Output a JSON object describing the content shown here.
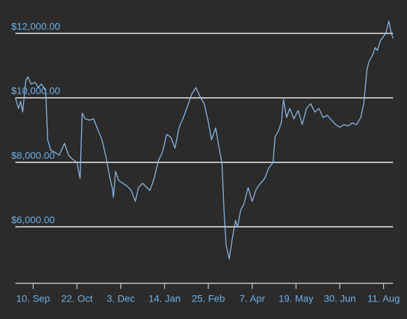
{
  "chart_data": {
    "type": "line",
    "color": "#8fbbe8",
    "grid": true,
    "x": [
      0,
      3,
      5,
      7,
      10,
      12,
      15,
      19,
      22,
      25,
      29,
      31,
      34,
      38,
      42,
      47,
      51,
      55,
      59,
      62,
      64,
      67,
      71,
      75,
      79,
      83,
      87,
      90,
      93,
      94,
      96,
      99,
      103,
      107,
      111,
      115,
      118,
      122,
      126,
      129,
      133,
      137,
      141,
      145,
      149,
      153,
      157,
      161,
      165,
      169,
      173,
      177,
      181,
      185,
      188,
      192,
      196,
      198,
      200,
      202,
      205,
      208,
      211,
      213,
      216,
      219,
      223,
      227,
      231,
      235,
      239,
      243,
      247,
      249,
      252,
      255,
      257,
      260,
      263,
      267,
      271,
      275,
      279,
      283,
      287,
      291,
      295,
      299,
      303,
      307,
      311,
      315,
      319,
      323,
      327,
      331,
      334,
      337,
      339,
      342,
      345,
      347,
      350,
      353,
      355,
      358,
      360,
      362
    ],
    "values": [
      10000,
      9670,
      9890,
      9560,
      10540,
      10650,
      10430,
      10480,
      10320,
      10430,
      10220,
      8700,
      8370,
      8310,
      8220,
      8590,
      8220,
      8090,
      8000,
      7500,
      9520,
      9350,
      9310,
      9350,
      9020,
      8700,
      8150,
      7610,
      7180,
      6920,
      7720,
      7440,
      7350,
      7270,
      7130,
      6790,
      7220,
      7350,
      7220,
      7130,
      7500,
      8050,
      8310,
      8870,
      8780,
      8440,
      9090,
      9390,
      9740,
      10110,
      10320,
      10040,
      9820,
      9240,
      8700,
      9070,
      8310,
      7980,
      6530,
      5440,
      5010,
      5660,
      6200,
      5990,
      6530,
      6700,
      7220,
      6790,
      7180,
      7350,
      7500,
      7830,
      8000,
      8800,
      8960,
      9240,
      9950,
      9390,
      9670,
      9350,
      9610,
      9170,
      9670,
      9820,
      9560,
      9670,
      9390,
      9460,
      9310,
      9170,
      9090,
      9170,
      9130,
      9220,
      9170,
      9390,
      9820,
      10870,
      11130,
      11300,
      11560,
      11470,
      11780,
      11910,
      11990,
      12380,
      12060,
      11840
    ],
    "xlim": [
      0,
      362
    ],
    "xticks": [
      {
        "value": 17,
        "label": "10. Sep"
      },
      {
        "value": 59,
        "label": "22. Oct"
      },
      {
        "value": 101,
        "label": "3. Dec"
      },
      {
        "value": 143,
        "label": "14. Jan"
      },
      {
        "value": 185,
        "label": "25. Feb"
      },
      {
        "value": 227,
        "label": "7. Apr"
      },
      {
        "value": 269,
        "label": "19. May"
      },
      {
        "value": 311,
        "label": "30. Jun"
      },
      {
        "value": 353,
        "label": "11. Aug"
      }
    ],
    "ylim": [
      4250,
      12600
    ],
    "yticks": [
      {
        "value": 6000,
        "label": "$6,000.00"
      },
      {
        "value": 8000,
        "label": "$8,000.00"
      },
      {
        "value": 10000,
        "label": "$10,000.00"
      },
      {
        "value": 12000,
        "label": "$12,000.00"
      }
    ]
  }
}
